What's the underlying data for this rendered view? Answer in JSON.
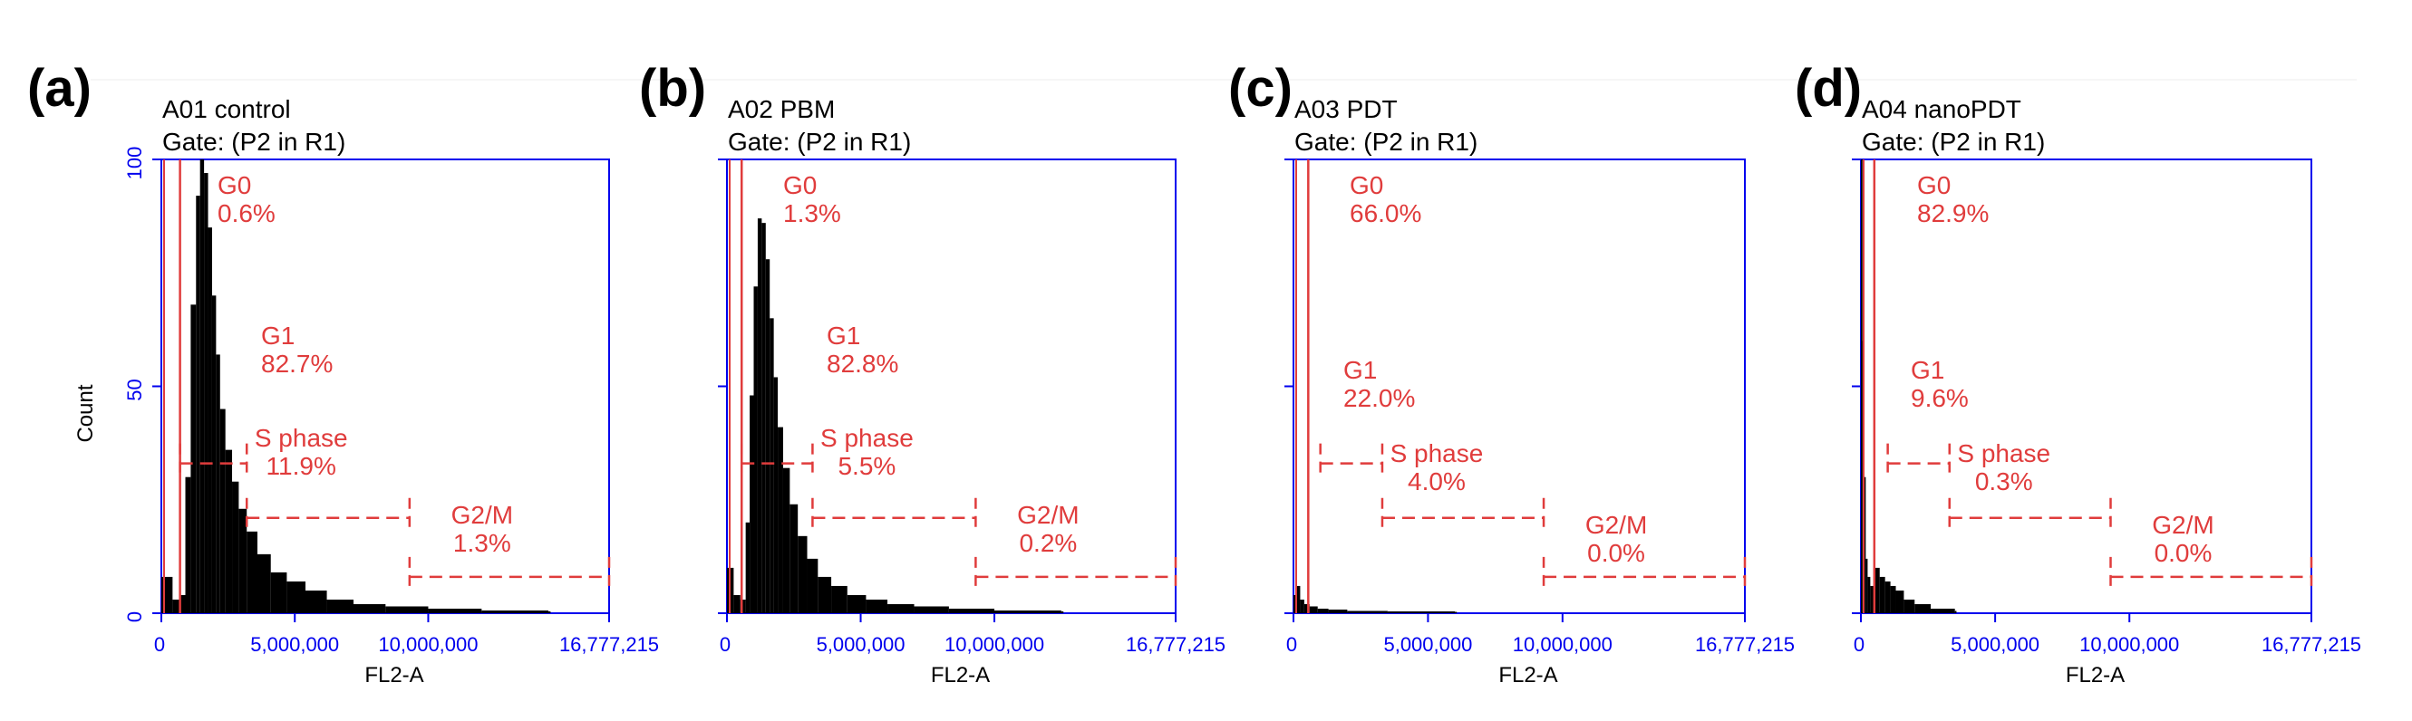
{
  "colors": {
    "axis": "#0000ee",
    "gate": "#e03c3c",
    "histogram": "#000000",
    "text": "#000000"
  },
  "chart_data": [
    {
      "type": "bar",
      "panel_label": "(a)",
      "title": "A01 control",
      "subtitle": "Gate: (P2 in R1)",
      "xlabel": "FL2-A",
      "ylabel": "Count",
      "xlim": [
        0,
        16777215
      ],
      "ylim": [
        0,
        100
      ],
      "x_tick_labels": [
        "0",
        "5,000,000",
        "10,000,000",
        "16,777,215"
      ],
      "y_tick_labels": [
        "0",
        "50",
        "100"
      ],
      "histogram": {
        "bin_width": 83000,
        "x": [
          0,
          420000,
          700000,
          900000,
          1100000,
          1300000,
          1450000,
          1600000,
          1750000,
          1900000,
          2050000,
          2200000,
          2400000,
          2650000,
          2900000,
          3200000,
          3600000,
          4100000,
          4700000,
          5400000,
          6200000,
          7200000,
          8400000,
          10000000,
          12000000,
          14500000
        ],
        "counts": [
          8,
          3,
          4,
          30,
          68,
          92,
          100,
          97,
          85,
          70,
          57,
          45,
          36,
          29,
          23,
          18,
          13,
          9,
          7,
          5,
          3,
          2,
          1.5,
          1,
          0.6,
          0.4
        ]
      },
      "gates": [
        {
          "name": "G0",
          "percent": "0.6%",
          "start": 0,
          "end": 700000,
          "level": 100
        },
        {
          "name": "G1",
          "percent": "82.7%",
          "start": 700000,
          "end": 3200000,
          "level": 33
        },
        {
          "name": "S phase",
          "percent": "11.9%",
          "start": 3200000,
          "end": 9300000,
          "level": 21
        },
        {
          "name": "G2/M",
          "percent": "1.3%",
          "start": 9300000,
          "end": 16777215,
          "level": 8
        }
      ]
    },
    {
      "type": "bar",
      "panel_label": "(b)",
      "title": "A02 PBM",
      "subtitle": "Gate: (P2 in R1)",
      "xlabel": "FL2-A",
      "ylabel": "",
      "xlim": [
        0,
        16777215
      ],
      "ylim": [
        0,
        100
      ],
      "x_tick_labels": [
        "0",
        "5,000,000",
        "10,000,000",
        "16,777,215"
      ],
      "y_tick_labels": [],
      "histogram": {
        "bin_width": 83000,
        "x": [
          0,
          250000,
          500000,
          700000,
          850000,
          1000000,
          1150000,
          1300000,
          1450000,
          1600000,
          1750000,
          1900000,
          2100000,
          2350000,
          2650000,
          3000000,
          3400000,
          3900000,
          4500000,
          5200000,
          6000000,
          7000000,
          8300000,
          10000000,
          12500000
        ],
        "counts": [
          10,
          4,
          3,
          20,
          48,
          72,
          87,
          86,
          78,
          65,
          52,
          41,
          32,
          24,
          17,
          12,
          8,
          6,
          4,
          3,
          2,
          1.5,
          1,
          0.6,
          0.4
        ]
      },
      "gates": [
        {
          "name": "G0",
          "percent": "1.3%",
          "start": 0,
          "end": 550000,
          "level": 100
        },
        {
          "name": "G1",
          "percent": "82.8%",
          "start": 550000,
          "end": 3200000,
          "level": 33
        },
        {
          "name": "S phase",
          "percent": "5.5%",
          "start": 3200000,
          "end": 9300000,
          "level": 21
        },
        {
          "name": "G2/M",
          "percent": "0.2%",
          "start": 9300000,
          "end": 16777215,
          "level": 8
        }
      ]
    },
    {
      "type": "bar",
      "panel_label": "(c)",
      "title": "A03 PDT",
      "subtitle": "Gate: (P2 in R1)",
      "xlabel": "FL2-A",
      "ylabel": "",
      "xlim": [
        0,
        16777215
      ],
      "ylim": [
        0,
        100
      ],
      "x_tick_labels": [
        "0",
        "5,000,000",
        "10,000,000",
        "16,777,215"
      ],
      "y_tick_labels": [],
      "histogram": {
        "bin_width": 70000,
        "x": [
          0,
          120000,
          250000,
          400000,
          600000,
          900000,
          1300000,
          2000000,
          3500000,
          6000000
        ],
        "counts": [
          4,
          6,
          3,
          2,
          1.5,
          1,
          0.8,
          0.5,
          0.4,
          0.3
        ]
      },
      "gates": [
        {
          "name": "G0",
          "percent": "66.0%",
          "start": 0,
          "end": 550000,
          "level": 100
        },
        {
          "name": "G1",
          "percent": "22.0%",
          "start": 1000000,
          "end": 3300000,
          "level": 33
        },
        {
          "name": "S phase",
          "percent": "4.0%",
          "start": 3300000,
          "end": 9300000,
          "level": 21
        },
        {
          "name": "G2/M",
          "percent": "0.0%",
          "start": 9300000,
          "end": 16777215,
          "level": 8
        }
      ]
    },
    {
      "type": "bar",
      "panel_label": "(d)",
      "title": "A04 nanoPDT",
      "subtitle": "Gate: (P2 in R1)",
      "xlabel": "FL2-A",
      "ylabel": "",
      "xlim": [
        0,
        16777215
      ],
      "ylim": [
        0,
        100
      ],
      "x_tick_labels": [
        "0",
        "5,000,000",
        "10,000,000",
        "16,777,215"
      ],
      "y_tick_labels": [],
      "histogram": {
        "bin_width": 60000,
        "x": [
          0,
          60000,
          120000,
          180000,
          250000,
          350000,
          500000,
          700000,
          900000,
          1100000,
          1300000,
          1600000,
          2000000,
          2600000,
          3500000
        ],
        "counts": [
          100,
          60,
          30,
          12,
          8,
          6,
          10,
          8,
          7,
          6,
          5,
          3,
          2,
          1,
          0.5
        ]
      },
      "gates": [
        {
          "name": "G0",
          "percent": "82.9%",
          "start": 0,
          "end": 500000,
          "level": 100
        },
        {
          "name": "G1",
          "percent": "9.6%",
          "start": 1000000,
          "end": 3300000,
          "level": 33
        },
        {
          "name": "S phase",
          "percent": "0.3%",
          "start": 3300000,
          "end": 9300000,
          "level": 21
        },
        {
          "name": "G2/M",
          "percent": "0.0%",
          "start": 9300000,
          "end": 16777215,
          "level": 8
        }
      ]
    }
  ]
}
